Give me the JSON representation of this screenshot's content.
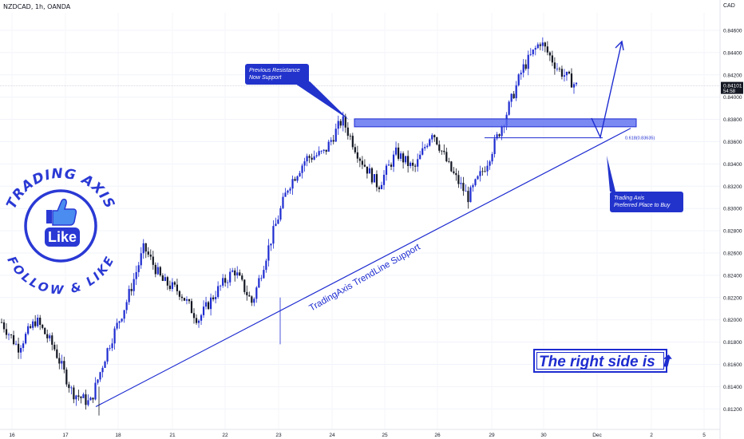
{
  "header": {
    "symbol": "NZDCAD, 1h, OANDA",
    "currency": "CAD"
  },
  "price_badge": {
    "price": "0.84101",
    "countdown": "54:58",
    "color": "#131722"
  },
  "colors": {
    "bull": "#1e2cd0",
    "bear": "#131722",
    "accent": "#1e2cd0",
    "zone": "#5a6cf0"
  },
  "annotations": {
    "callout_resistance": [
      "Previous Resistance",
      "Now Support"
    ],
    "callout_buy": [
      "Trading Axis",
      "Preferred Place to Buy"
    ],
    "trendline_label": "TradingAxis TrendLine Support",
    "fib_label": "0.618(0.83635)",
    "right_side_note": "The right side is ⬆"
  },
  "logo": {
    "top_text": "TRADING AXIS",
    "bottom_text": "FOLLOW & LIKE",
    "center_text": "Like",
    "icon": "thumbs-up-icon"
  },
  "chart_data": {
    "type": "candlestick",
    "symbol": "NZDCAD",
    "timeframe": "1h",
    "ylim": [
      0.8108,
      0.8475
    ],
    "x_ticks": [
      "16",
      "17",
      "18",
      "21",
      "22",
      "23",
      "24",
      "25",
      "26",
      "29",
      "30",
      "Dec",
      "2",
      "5"
    ],
    "y_ticks": [
      "0.84600",
      "0.84400",
      "0.84200",
      "0.84000",
      "0.83800",
      "0.83600",
      "0.83400",
      "0.83200",
      "0.83000",
      "0.82800",
      "0.82600",
      "0.82400",
      "0.82200",
      "0.82000",
      "0.81800",
      "0.81600",
      "0.81400",
      "0.81200"
    ],
    "last_price": 0.84101,
    "support_zone": [
      0.8375,
      0.838
    ],
    "fib_level": 0.83635,
    "trendline": [
      {
        "day": "17",
        "price": 0.8122
      },
      {
        "day": "30",
        "price": 0.8365
      }
    ],
    "close_path": [
      {
        "x": "16",
        "price": 0.82
      },
      {
        "x": "16",
        "price": 0.8175
      },
      {
        "x": "17",
        "price": 0.82
      },
      {
        "x": "17",
        "price": 0.8175
      },
      {
        "x": "17",
        "price": 0.8135
      },
      {
        "x": "18",
        "price": 0.8125
      },
      {
        "x": "18",
        "price": 0.8175
      },
      {
        "x": "18",
        "price": 0.8215
      },
      {
        "x": "21",
        "price": 0.8265
      },
      {
        "x": "21",
        "price": 0.8235
      },
      {
        "x": "21",
        "price": 0.8225
      },
      {
        "x": "22",
        "price": 0.82
      },
      {
        "x": "22",
        "price": 0.8225
      },
      {
        "x": "22",
        "price": 0.8245
      },
      {
        "x": "23",
        "price": 0.8215
      },
      {
        "x": "23",
        "price": 0.827
      },
      {
        "x": "23",
        "price": 0.832
      },
      {
        "x": "24",
        "price": 0.8345
      },
      {
        "x": "24",
        "price": 0.835
      },
      {
        "x": "24",
        "price": 0.838
      },
      {
        "x": "25",
        "price": 0.8345
      },
      {
        "x": "25",
        "price": 0.832
      },
      {
        "x": "25",
        "price": 0.835
      },
      {
        "x": "26",
        "price": 0.8335
      },
      {
        "x": "26",
        "price": 0.837
      },
      {
        "x": "26",
        "price": 0.8335
      },
      {
        "x": "29",
        "price": 0.831
      },
      {
        "x": "29",
        "price": 0.834
      },
      {
        "x": "29",
        "price": 0.838
      },
      {
        "x": "30",
        "price": 0.8425
      },
      {
        "x": "30",
        "price": 0.845
      },
      {
        "x": "30",
        "price": 0.8425
      },
      {
        "x": "30",
        "price": 0.841
      }
    ]
  }
}
